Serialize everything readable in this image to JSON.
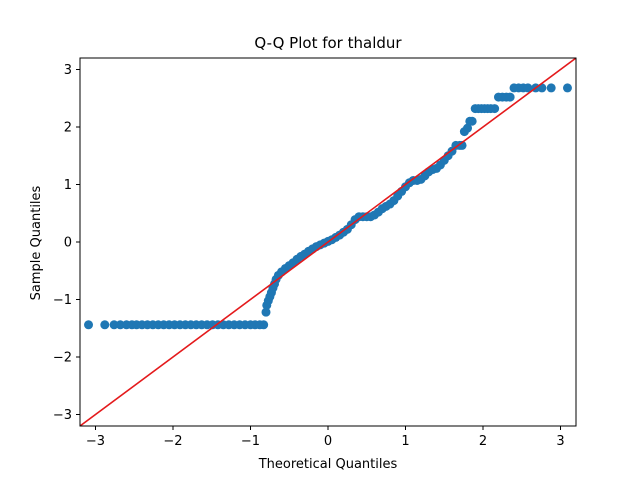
{
  "chart_data": {
    "type": "scatter",
    "title": "Q-Q Plot for thaldur",
    "xlabel": "Theoretical Quantiles",
    "ylabel": "Sample Quantiles",
    "xlim": [
      -3.2,
      3.2
    ],
    "ylim": [
      -3.2,
      3.2
    ],
    "xticks": [
      -3,
      -2,
      -1,
      0,
      1,
      2,
      3
    ],
    "yticks": [
      -3,
      -2,
      -1,
      0,
      1,
      2,
      3
    ],
    "xtick_labels": [
      "−3",
      "−2",
      "−1",
      "0",
      "1",
      "2",
      "3"
    ],
    "ytick_labels": [
      "−3",
      "−2",
      "−1",
      "0",
      "1",
      "2",
      "3"
    ],
    "grid": false,
    "marker_color": "#1f77b4",
    "reference_line": {
      "color": "#e41a1c",
      "slope": 1,
      "intercept": 0
    },
    "series": [
      {
        "points": [
          [
            -3.09,
            -1.44
          ],
          [
            -2.88,
            -1.44
          ],
          [
            -2.76,
            -1.44
          ],
          [
            -2.68,
            -1.44
          ],
          [
            -2.6,
            -1.44
          ],
          [
            -2.53,
            -1.44
          ],
          [
            -2.47,
            -1.44
          ],
          [
            -2.4,
            -1.44
          ],
          [
            -2.33,
            -1.44
          ],
          [
            -2.26,
            -1.44
          ],
          [
            -2.19,
            -1.44
          ],
          [
            -2.12,
            -1.44
          ],
          [
            -2.05,
            -1.44
          ],
          [
            -1.98,
            -1.44
          ],
          [
            -1.91,
            -1.44
          ],
          [
            -1.84,
            -1.44
          ],
          [
            -1.77,
            -1.44
          ],
          [
            -1.7,
            -1.44
          ],
          [
            -1.63,
            -1.44
          ],
          [
            -1.56,
            -1.44
          ],
          [
            -1.49,
            -1.44
          ],
          [
            -1.42,
            -1.44
          ],
          [
            -1.35,
            -1.44
          ],
          [
            -1.28,
            -1.44
          ],
          [
            -1.21,
            -1.44
          ],
          [
            -1.14,
            -1.44
          ],
          [
            -1.07,
            -1.44
          ],
          [
            -1.0,
            -1.44
          ],
          [
            -0.94,
            -1.44
          ],
          [
            -0.88,
            -1.44
          ],
          [
            -0.83,
            -1.44
          ],
          [
            -0.8,
            -1.22
          ],
          [
            -0.79,
            -1.1
          ],
          [
            -0.77,
            -1.02
          ],
          [
            -0.75,
            -0.95
          ],
          [
            -0.73,
            -0.88
          ],
          [
            -0.71,
            -0.8
          ],
          [
            -0.69,
            -0.73
          ],
          [
            -0.67,
            -0.65
          ],
          [
            -0.64,
            -0.58
          ],
          [
            -0.6,
            -0.52
          ],
          [
            -0.55,
            -0.46
          ],
          [
            -0.5,
            -0.41
          ],
          [
            -0.45,
            -0.36
          ],
          [
            -0.4,
            -0.3
          ],
          [
            -0.35,
            -0.25
          ],
          [
            -0.3,
            -0.21
          ],
          [
            -0.25,
            -0.16
          ],
          [
            -0.2,
            -0.12
          ],
          [
            -0.15,
            -0.08
          ],
          [
            -0.1,
            -0.05
          ],
          [
            -0.05,
            -0.02
          ],
          [
            0.0,
            0.01
          ],
          [
            0.05,
            0.04
          ],
          [
            0.1,
            0.08
          ],
          [
            0.15,
            0.12
          ],
          [
            0.2,
            0.17
          ],
          [
            0.25,
            0.22
          ],
          [
            0.3,
            0.3
          ],
          [
            0.35,
            0.39
          ],
          [
            0.4,
            0.44
          ],
          [
            0.45,
            0.44
          ],
          [
            0.5,
            0.44
          ],
          [
            0.55,
            0.44
          ],
          [
            0.6,
            0.47
          ],
          [
            0.65,
            0.52
          ],
          [
            0.7,
            0.58
          ],
          [
            0.75,
            0.62
          ],
          [
            0.8,
            0.66
          ],
          [
            0.85,
            0.72
          ],
          [
            0.9,
            0.8
          ],
          [
            0.95,
            0.88
          ],
          [
            1.0,
            0.96
          ],
          [
            1.05,
            1.03
          ],
          [
            1.1,
            1.07
          ],
          [
            1.15,
            1.07
          ],
          [
            1.2,
            1.09
          ],
          [
            1.25,
            1.15
          ],
          [
            1.3,
            1.22
          ],
          [
            1.35,
            1.26
          ],
          [
            1.4,
            1.28
          ],
          [
            1.45,
            1.34
          ],
          [
            1.5,
            1.42
          ],
          [
            1.55,
            1.5
          ],
          [
            1.6,
            1.58
          ],
          [
            1.65,
            1.68
          ],
          [
            1.7,
            1.68
          ],
          [
            1.73,
            1.68
          ],
          [
            1.76,
            1.92
          ],
          [
            1.8,
            1.98
          ],
          [
            1.83,
            2.1
          ],
          [
            1.86,
            2.1
          ],
          [
            1.9,
            2.32
          ],
          [
            1.94,
            2.32
          ],
          [
            1.98,
            2.32
          ],
          [
            2.02,
            2.32
          ],
          [
            2.06,
            2.32
          ],
          [
            2.1,
            2.32
          ],
          [
            2.15,
            2.32
          ],
          [
            2.2,
            2.52
          ],
          [
            2.25,
            2.52
          ],
          [
            2.3,
            2.52
          ],
          [
            2.35,
            2.52
          ],
          [
            2.4,
            2.68
          ],
          [
            2.46,
            2.68
          ],
          [
            2.52,
            2.68
          ],
          [
            2.58,
            2.68
          ],
          [
            2.68,
            2.68
          ],
          [
            2.76,
            2.68
          ],
          [
            2.88,
            2.68
          ],
          [
            3.09,
            2.68
          ]
        ]
      }
    ]
  }
}
